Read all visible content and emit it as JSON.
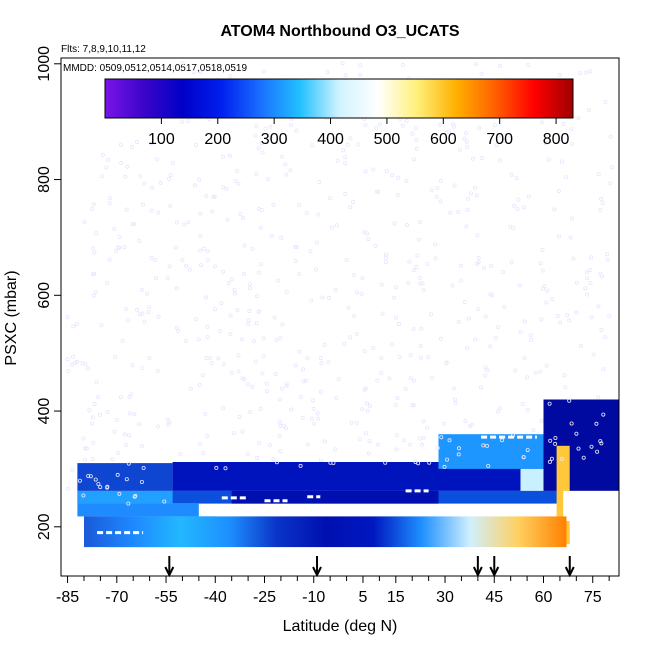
{
  "chart_data": {
    "type": "heatmap",
    "title": "ATOM4 Northbound O3_UCATS",
    "subtitle_flights": "Flts: 7,8,9,10,11,12",
    "subtitle_dates": "MMDD: 0509,0512,0514,0517,0518,0519",
    "xlabel": "Latitude (deg N)",
    "ylabel": "PSXC (mbar)",
    "x_ticks": [
      "-85",
      "-70",
      "-55",
      "-40",
      "-25",
      "-10",
      "5",
      "15",
      "30",
      "45",
      "60",
      "75"
    ],
    "x_tick_values": [
      -85,
      -70,
      -55,
      -40,
      -25,
      -10,
      5,
      15,
      30,
      45,
      60,
      75
    ],
    "xlim": [
      -87,
      83
    ],
    "y_ticks": [
      "200",
      "400",
      "600",
      "800",
      "1000"
    ],
    "y_tick_values": [
      200,
      400,
      600,
      800,
      1000
    ],
    "ylim": [
      1010,
      115
    ],
    "y_reversed": true,
    "colorbar": {
      "ticks": [
        "100",
        "200",
        "300",
        "400",
        "500",
        "600",
        "700",
        "800"
      ],
      "tick_values": [
        100,
        200,
        300,
        400,
        500,
        600,
        700,
        800
      ],
      "range": [
        0,
        830
      ],
      "colors": [
        "#7a14e8",
        "#3a05c8",
        "#0000c8",
        "#0020ee",
        "#1a70ff",
        "#22c0ff",
        "#cff3ff",
        "#ffffff",
        "#fff07a",
        "#ffb000",
        "#ff6000",
        "#ff0000",
        "#a00000"
      ]
    },
    "flight_arrow_latitudes": [
      -54,
      -9,
      40,
      45,
      68
    ],
    "grid": false,
    "legend": "none"
  }
}
